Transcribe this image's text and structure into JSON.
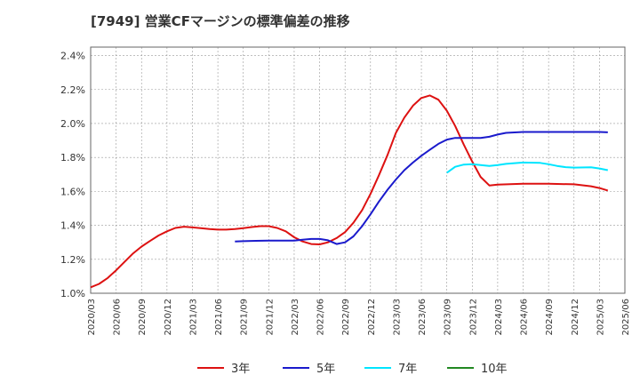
{
  "chart_data": {
    "type": "line",
    "title": "[7949]  営業CFマージンの標準偏差の推移",
    "ylim": [
      0.01,
      0.0245
    ],
    "yticks": [
      0.01,
      0.012,
      0.014,
      0.016,
      0.018,
      0.02,
      0.022,
      0.024
    ],
    "ytick_labels": [
      "1.0%",
      "1.2%",
      "1.4%",
      "1.6%",
      "1.8%",
      "2.0%",
      "2.2%",
      "2.4%"
    ],
    "x_labels": [
      "2020/03",
      "2020/06",
      "2020/09",
      "2020/12",
      "2021/03",
      "2021/06",
      "2021/09",
      "2021/12",
      "2022/03",
      "2022/06",
      "2022/09",
      "2022/12",
      "2023/03",
      "2023/06",
      "2023/09",
      "2023/12",
      "2024/03",
      "2024/06",
      "2024/09",
      "2024/12",
      "2025/03",
      "2025/06"
    ],
    "grid": true,
    "legend_position": "bottom",
    "series": [
      {
        "name": "3年",
        "color": "#dd1111",
        "points": [
          [
            0,
            0.01035
          ],
          [
            0.33,
            0.01055
          ],
          [
            0.67,
            0.0109
          ],
          [
            1,
            0.01135
          ],
          [
            1.33,
            0.01185
          ],
          [
            1.67,
            0.01235
          ],
          [
            2,
            0.01275
          ],
          [
            2.33,
            0.01308
          ],
          [
            2.67,
            0.0134
          ],
          [
            3,
            0.01365
          ],
          [
            3.33,
            0.01385
          ],
          [
            3.67,
            0.01392
          ],
          [
            4,
            0.01388
          ],
          [
            4.33,
            0.01383
          ],
          [
            4.67,
            0.01378
          ],
          [
            5,
            0.01375
          ],
          [
            5.33,
            0.01375
          ],
          [
            5.67,
            0.01378
          ],
          [
            6,
            0.01383
          ],
          [
            6.33,
            0.0139
          ],
          [
            6.67,
            0.01395
          ],
          [
            7,
            0.01395
          ],
          [
            7.33,
            0.01385
          ],
          [
            7.67,
            0.01365
          ],
          [
            8,
            0.0133
          ],
          [
            8.33,
            0.01305
          ],
          [
            8.67,
            0.0129
          ],
          [
            9,
            0.01288
          ],
          [
            9.33,
            0.013
          ],
          [
            9.67,
            0.01325
          ],
          [
            10,
            0.0136
          ],
          [
            10.33,
            0.01415
          ],
          [
            10.67,
            0.0149
          ],
          [
            11,
            0.01585
          ],
          [
            11.33,
            0.01695
          ],
          [
            11.67,
            0.01815
          ],
          [
            12,
            0.01945
          ],
          [
            12.33,
            0.02035
          ],
          [
            12.67,
            0.02105
          ],
          [
            13,
            0.0215
          ],
          [
            13.33,
            0.02165
          ],
          [
            13.67,
            0.0214
          ],
          [
            14,
            0.02075
          ],
          [
            14.33,
            0.01985
          ],
          [
            14.67,
            0.01875
          ],
          [
            15,
            0.01775
          ],
          [
            15.33,
            0.01685
          ],
          [
            15.67,
            0.01635
          ],
          [
            16,
            0.0164
          ],
          [
            17,
            0.01645
          ],
          [
            18,
            0.01645
          ],
          [
            19,
            0.01642
          ],
          [
            19.67,
            0.0163
          ],
          [
            20,
            0.0162
          ],
          [
            20.33,
            0.01605
          ]
        ]
      },
      {
        "name": "5年",
        "color": "#1a1acc",
        "points": [
          [
            5.67,
            0.01305
          ],
          [
            6,
            0.01307
          ],
          [
            6.5,
            0.01309
          ],
          [
            7,
            0.0131
          ],
          [
            7.5,
            0.0131
          ],
          [
            8,
            0.0131
          ],
          [
            8.33,
            0.01315
          ],
          [
            8.67,
            0.0132
          ],
          [
            9,
            0.0132
          ],
          [
            9.33,
            0.01312
          ],
          [
            9.67,
            0.0129
          ],
          [
            10,
            0.013
          ],
          [
            10.33,
            0.01335
          ],
          [
            10.67,
            0.01395
          ],
          [
            11,
            0.01465
          ],
          [
            11.33,
            0.0154
          ],
          [
            11.67,
            0.0161
          ],
          [
            12,
            0.0167
          ],
          [
            12.33,
            0.01725
          ],
          [
            12.67,
            0.0177
          ],
          [
            13,
            0.0181
          ],
          [
            13.33,
            0.01845
          ],
          [
            13.67,
            0.0188
          ],
          [
            14,
            0.01905
          ],
          [
            14.33,
            0.01915
          ],
          [
            15,
            0.01915
          ],
          [
            15.33,
            0.01915
          ],
          [
            15.67,
            0.01922
          ],
          [
            16,
            0.01935
          ],
          [
            16.33,
            0.01945
          ],
          [
            17,
            0.0195
          ],
          [
            18,
            0.0195
          ],
          [
            19,
            0.0195
          ],
          [
            20,
            0.0195
          ],
          [
            20.33,
            0.01948
          ]
        ]
      },
      {
        "name": "7年",
        "color": "#00e5ff",
        "points": [
          [
            14,
            0.0171
          ],
          [
            14.33,
            0.01745
          ],
          [
            14.67,
            0.01758
          ],
          [
            15,
            0.0176
          ],
          [
            15.33,
            0.01755
          ],
          [
            15.67,
            0.0175
          ],
          [
            16,
            0.01755
          ],
          [
            16.33,
            0.01762
          ],
          [
            17,
            0.0177
          ],
          [
            17.67,
            0.01768
          ],
          [
            18,
            0.0176
          ],
          [
            18.33,
            0.0175
          ],
          [
            18.67,
            0.01743
          ],
          [
            19,
            0.0174
          ],
          [
            19.67,
            0.01742
          ],
          [
            20,
            0.01735
          ],
          [
            20.33,
            0.01725
          ]
        ]
      },
      {
        "name": "10年",
        "color": "#228822",
        "points": []
      }
    ]
  }
}
